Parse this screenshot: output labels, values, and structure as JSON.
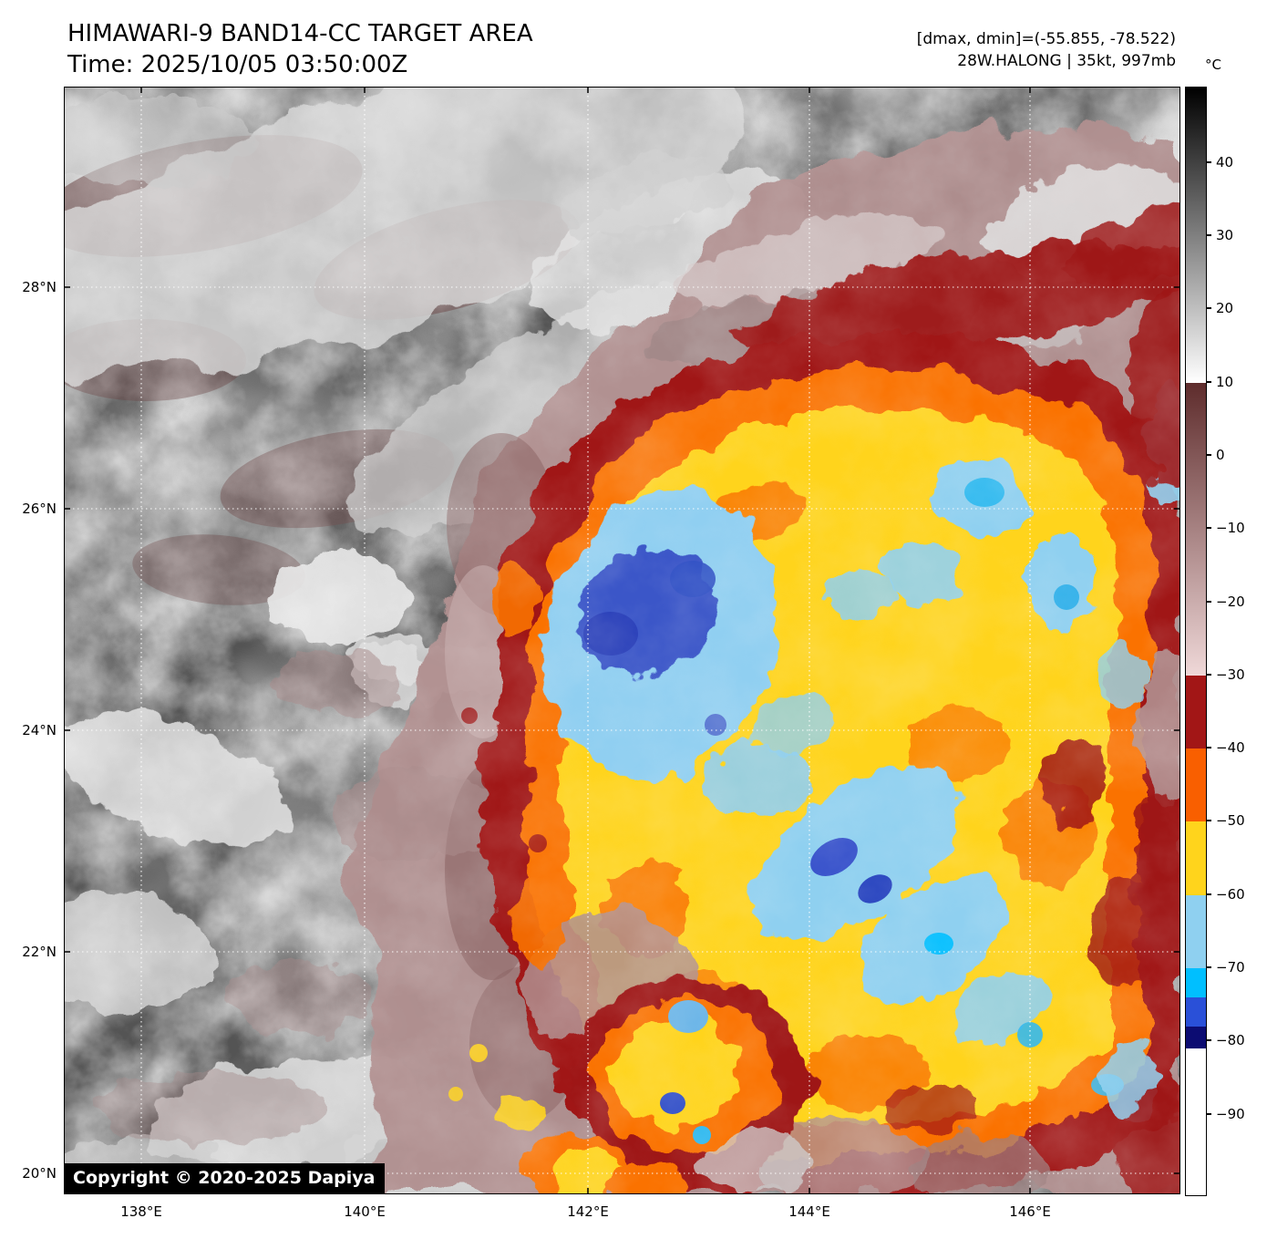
{
  "header": {
    "title": "HIMAWARI-9 BAND14-CC TARGET AREA",
    "time": "Time: 2025/10/05 03:50:00Z",
    "dmax_dmin": "[dmax, dmin]=(-55.855, -78.522)",
    "storm_info": "28W.HALONG | 35kt, 997mb"
  },
  "map": {
    "lat_labels": [
      "28°N",
      "26°N",
      "24°N",
      "22°N",
      "20°N"
    ],
    "lon_labels": [
      "138°E",
      "140°E",
      "142°E",
      "144°E",
      "146°E"
    ],
    "copyright": "Copyright © 2020-2025 Dapiya"
  },
  "colorbar": {
    "unit": "°C",
    "ticks": [
      {
        "label": "40",
        "value": 40
      },
      {
        "label": "30",
        "value": 30
      },
      {
        "label": "20",
        "value": 20
      },
      {
        "label": "10",
        "value": 10
      },
      {
        "label": "0",
        "value": 0
      },
      {
        "label": "−10",
        "value": -10
      },
      {
        "label": "−20",
        "value": -20
      },
      {
        "label": "−30",
        "value": -30
      },
      {
        "label": "−40",
        "value": -40
      },
      {
        "label": "−50",
        "value": -50
      },
      {
        "label": "−60",
        "value": -60
      },
      {
        "label": "−70",
        "value": -70
      },
      {
        "label": "−80",
        "value": -80
      },
      {
        "label": "−90",
        "value": -90
      }
    ],
    "segments": [
      {
        "from": 50.3,
        "to": 10,
        "top_color": "#000000",
        "bottom_color": "#ffffff"
      },
      {
        "from": 10,
        "to": -30,
        "top_color": "#5e2c2c",
        "bottom_color": "#efd8d8"
      },
      {
        "from": -30,
        "to": -40,
        "color": "#a21616"
      },
      {
        "from": -40,
        "to": -50,
        "color": "#f95f00"
      },
      {
        "from": -50,
        "to": -60,
        "color": "#ffd41c"
      },
      {
        "from": -60,
        "to": -70,
        "color": "#8fd0f0"
      },
      {
        "from": -70,
        "to": -74,
        "color": "#00bfff"
      },
      {
        "from": -74,
        "to": -78,
        "color": "#2a50d8"
      },
      {
        "from": -78,
        "to": -81,
        "color": "#0c0c72"
      },
      {
        "from": -81,
        "to": -101,
        "color": "#ffffff"
      }
    ]
  }
}
